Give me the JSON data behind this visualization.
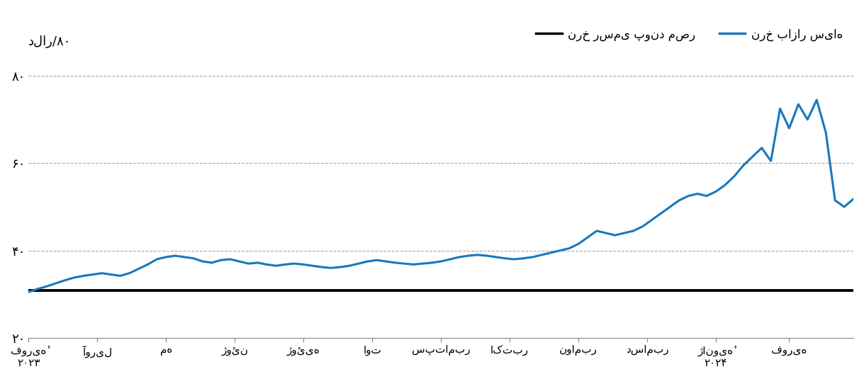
{
  "ylabel": "دلار/۸۰",
  "ylim": [
    20,
    85
  ],
  "yticks": [
    20,
    40,
    60,
    80
  ],
  "ytick_labels": [
    "۲۰",
    "۴۰",
    "۶۰",
    "۸۰"
  ],
  "xtick_labels": [
    "فوریهٔ\n۲۰۲۳",
    "آوریل",
    "مه",
    "ژوئن",
    "ژوئیه",
    "اوت",
    "سپتامبر",
    "اکتبر",
    "نوامبر",
    "دسامبر",
    "ژانویهٔ\n۲۰۲۴",
    "فوریه"
  ],
  "legend_official": "نرخ رسمی پوند مصر",
  "legend_black_market": "نرخ بازار سیاه",
  "official_rate_y": 30.9,
  "blue_line_color": "#1878be",
  "black_line_color": "#000000",
  "background_color": "#ffffff",
  "grid_color": "#aaaaaa",
  "blue_y": [
    30.5,
    31.2,
    31.8,
    32.5,
    33.2,
    33.8,
    34.2,
    34.5,
    34.8,
    34.5,
    34.2,
    34.8,
    35.8,
    36.8,
    38.0,
    38.5,
    38.8,
    38.5,
    38.2,
    37.5,
    37.2,
    37.8,
    38.0,
    37.5,
    37.0,
    37.2,
    36.8,
    36.5,
    36.8,
    37.0,
    36.8,
    36.5,
    36.2,
    36.0,
    36.2,
    36.5,
    37.0,
    37.5,
    37.8,
    37.5,
    37.2,
    37.0,
    36.8,
    37.0,
    37.2,
    37.5,
    38.0,
    38.5,
    38.8,
    39.0,
    38.8,
    38.5,
    38.2,
    38.0,
    38.2,
    38.5,
    39.0,
    39.5,
    40.0,
    40.5,
    41.5,
    43.0,
    44.5,
    44.0,
    43.5,
    44.0,
    44.5,
    45.5,
    47.0,
    48.5,
    50.0,
    51.5,
    52.5,
    53.0,
    52.5,
    53.5,
    55.0,
    57.0,
    59.5,
    61.5,
    63.5,
    60.5,
    72.5,
    68.0,
    73.5,
    70.0,
    74.5,
    67.0,
    51.5,
    50.0,
    51.8
  ],
  "xtick_positions": [
    0,
    7.5,
    15,
    22.5,
    30,
    37.5,
    45,
    52.5,
    60,
    67.5,
    75,
    83
  ],
  "xlim": [
    0,
    90
  ]
}
